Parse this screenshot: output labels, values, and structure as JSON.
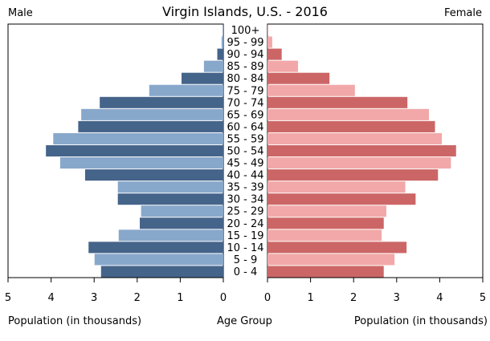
{
  "chart_data": {
    "type": "bar",
    "title": "Virgin Islands, U.S. - 2016",
    "left_label": "Male",
    "right_label": "Female",
    "left_xlabel": "Population (in thousands)",
    "center_xlabel": "Age Group",
    "right_xlabel": "Population (in thousands)",
    "xlim": [
      0,
      5
    ],
    "x_ticks": [
      "0",
      "1",
      "2",
      "3",
      "4",
      "5"
    ],
    "categories": [
      "0 - 4",
      "5 - 9",
      "10 - 14",
      "15 - 19",
      "20 - 24",
      "25 - 29",
      "30 - 34",
      "35 - 39",
      "40 - 44",
      "45 - 49",
      "50 - 54",
      "55 - 59",
      "60 - 64",
      "65 - 69",
      "70 - 74",
      "75 - 79",
      "80 - 84",
      "85 - 89",
      "90 - 94",
      "95 - 99",
      "100+"
    ],
    "series": [
      {
        "name": "Male",
        "values": [
          2.84,
          2.99,
          3.13,
          2.43,
          1.94,
          1.91,
          2.45,
          2.45,
          3.21,
          3.79,
          4.12,
          3.95,
          3.37,
          3.3,
          2.87,
          1.72,
          0.97,
          0.45,
          0.14,
          0.04,
          0.01
        ]
      },
      {
        "name": "Female",
        "values": [
          2.7,
          2.95,
          3.23,
          2.65,
          2.7,
          2.76,
          3.44,
          3.2,
          3.96,
          4.26,
          4.38,
          4.05,
          3.89,
          3.75,
          3.25,
          2.03,
          1.44,
          0.71,
          0.33,
          0.11,
          0.01
        ]
      }
    ],
    "colors": {
      "male_dark": "#45648A",
      "male_light": "#88A8CB",
      "female_dark": "#CC6666",
      "female_light": "#F2A8A8"
    },
    "grid": false
  }
}
